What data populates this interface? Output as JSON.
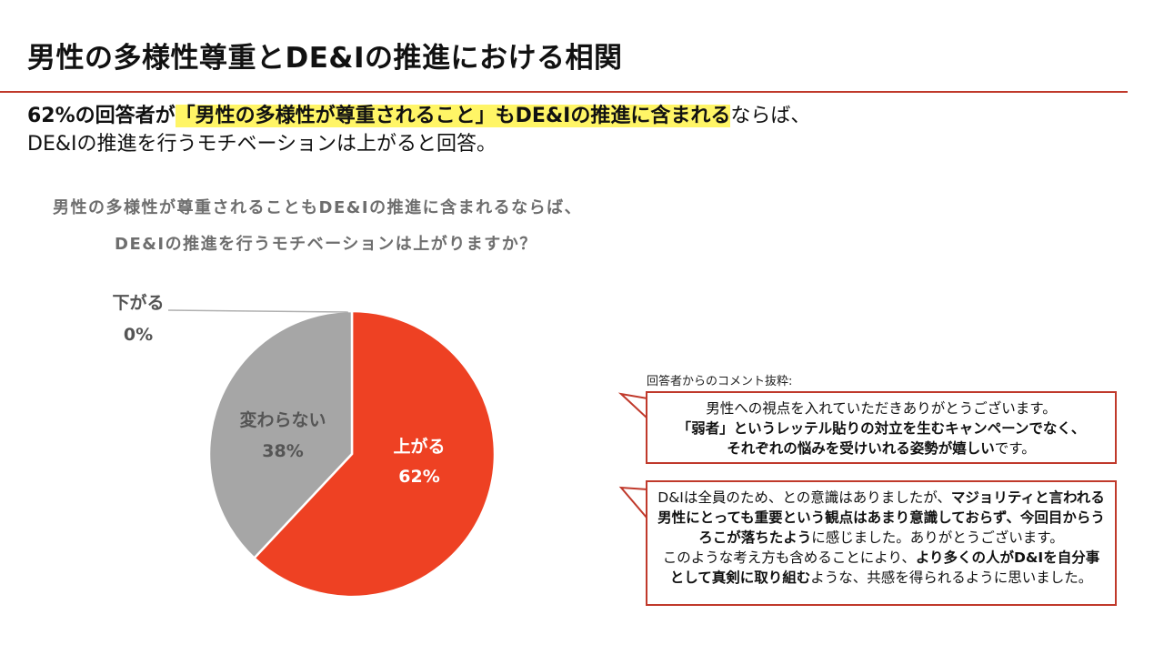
{
  "title": "男性の多様性尊重とDE&Iの推進における相関",
  "lead": {
    "p1": "62%の回答者が",
    "p2": "「男性の多様性が尊重されること」もDE&Iの推進に含まれる",
    "p3": "ならば、",
    "p4": "DE&Iの推進を行うモチベーションは上がると回答。"
  },
  "question": {
    "line1": "男性の多様性が尊重されることもDE&Iの推進に含まれるならば、",
    "line2": "DE&Iの推進を行うモチベーションは上がりますか？"
  },
  "chart_data": {
    "type": "pie",
    "slices": [
      {
        "label": "上がる",
        "value": 62,
        "value_label": "62%",
        "color": "#ee4123"
      },
      {
        "label": "変わらない",
        "value": 38,
        "value_label": "38%",
        "color": "#a6a6a6"
      },
      {
        "label": "下がる",
        "value": 0,
        "value_label": "0%",
        "color": "#d9d9d9"
      }
    ]
  },
  "comments": {
    "label": "回答者からのコメント抜粋:",
    "c1": {
      "a": "男性への視点を入れていただきありがとうございます。",
      "b": "「弱者」というレッテル貼りの対立を生むキャンペーンでなく、",
      "c": "それぞれの悩みを受けいれる姿勢が嬉しい",
      "d": "です。"
    },
    "c2": {
      "a": "D&Iは全員のため、との意識はありましたが、",
      "b": "マジョリティと言われる男性にとっても重要という観点はあまり意識しておらず、今回目からうろこが落ちたよう",
      "c": "に感じました。ありがとうございます。",
      "d": "このような考え方も含めることにより、",
      "e": "より多くの人がD&Iを自分事として真剣に取り組む",
      "f": "ような、共感を得られるように思いました。"
    }
  },
  "colors": {
    "accent": "#c0392b",
    "highlight": "#fff566"
  }
}
